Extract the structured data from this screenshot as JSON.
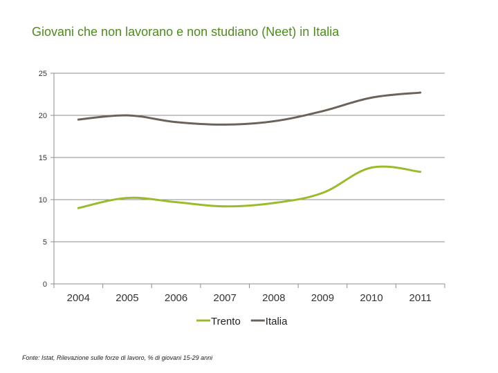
{
  "chart_data": {
    "type": "line",
    "title": "Giovani che non lavorano e non studiano (Neet) in Italia",
    "xlabel": "",
    "ylabel": "",
    "categories": [
      "2004",
      "2005",
      "2006",
      "2007",
      "2008",
      "2009",
      "2010",
      "2011"
    ],
    "ylim": [
      0,
      25
    ],
    "yticks": [
      0,
      5,
      10,
      15,
      20,
      25
    ],
    "grid": true,
    "legend_position": "bottom",
    "series": [
      {
        "name": "Trento",
        "color": "#9bbb2b",
        "values": [
          9.0,
          10.2,
          9.7,
          9.2,
          9.6,
          10.8,
          13.8,
          13.3
        ]
      },
      {
        "name": "Italia",
        "color": "#6b635a",
        "values": [
          19.5,
          20.0,
          19.2,
          18.9,
          19.3,
          20.5,
          22.1,
          22.7
        ]
      }
    ],
    "source": "Fonte: Istat, Rilevazione sulle forze di lavoro, % di giovani 15-29 anni"
  }
}
